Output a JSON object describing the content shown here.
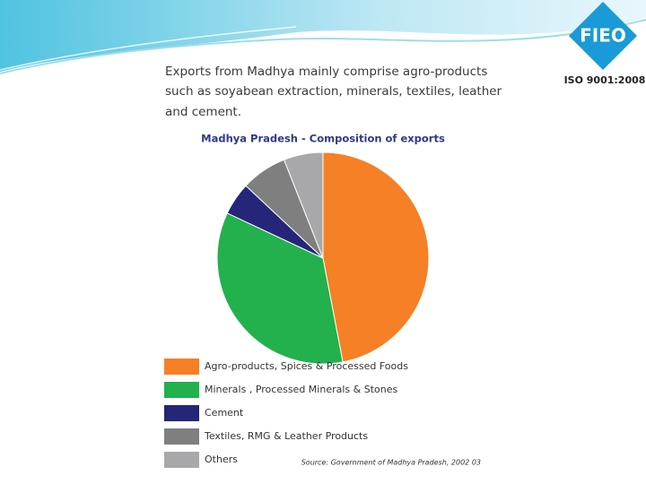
{
  "header": {
    "logo": "FIEO",
    "certification": "ISO 9001:2008"
  },
  "intro": [
    "Exports from Madhya mainly comprise agro-products",
    "such as soyabean extraction, minerals, textiles, leather",
    "and cement."
  ],
  "chart_data": {
    "type": "pie",
    "title": "Madhya Pradesh - Composition of exports",
    "categories": [
      "Agro-products, Spices & Processed Foods",
      "Minerals , Processed Minerals & Stones",
      "Cement",
      "Textiles, RMG & Leather Products",
      "Others"
    ],
    "values": [
      47,
      35,
      5,
      7,
      6
    ],
    "colors": [
      "#f58025",
      "#22b14c",
      "#25257a",
      "#7f7f7f",
      "#a8a8aa"
    ],
    "source": "Source: Government of Madhya Pradesh, 2002 03"
  }
}
